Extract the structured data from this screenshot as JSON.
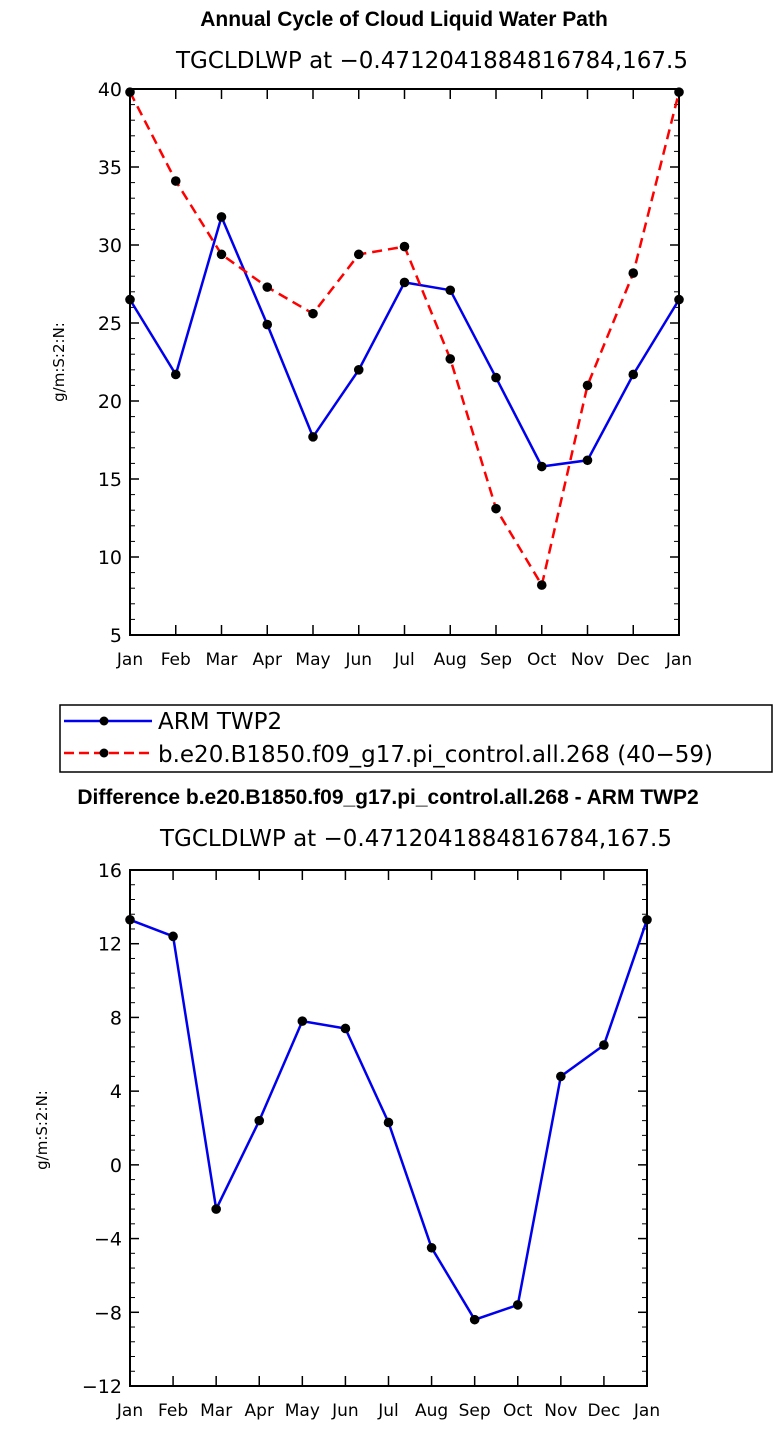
{
  "chart_data": [
    {
      "type": "line",
      "title": "Annual Cycle of Cloud Liquid Water Path",
      "subtitle": "TGCLDLWP at −0.4712041884816784,167.5",
      "xlabel": "",
      "ylabel": "g/m:S:2:N:",
      "categories": [
        "Jan",
        "Feb",
        "Mar",
        "Apr",
        "May",
        "Jun",
        "Jul",
        "Aug",
        "Sep",
        "Oct",
        "Nov",
        "Dec",
        "Jan"
      ],
      "ylim": [
        5,
        40
      ],
      "yticks": [
        5,
        10,
        15,
        20,
        25,
        30,
        35,
        40
      ],
      "ytick_labels": [
        "5",
        "10",
        "15",
        "20",
        "25",
        "30",
        "35",
        "40"
      ],
      "series": [
        {
          "name": "ARM TWP2",
          "color": "#0000ee",
          "style": "solid",
          "values": [
            26.5,
            21.7,
            31.8,
            24.9,
            17.7,
            22.0,
            27.6,
            27.1,
            21.5,
            15.8,
            16.2,
            21.7,
            26.5
          ]
        },
        {
          "name": "b.e20.B1850.f09_g17.pi_control.all.268 (40−59)",
          "color": "#ff0000",
          "style": "dashed",
          "values": [
            39.8,
            34.1,
            29.4,
            27.3,
            25.6,
            29.4,
            29.9,
            22.7,
            13.1,
            8.2,
            21.0,
            28.2,
            39.8
          ]
        }
      ],
      "legend_position": "below"
    },
    {
      "type": "line",
      "title": "Difference b.e20.B1850.f09_g17.pi_control.all.268 - ARM TWP2",
      "subtitle": "TGCLDLWP at −0.4712041884816784,167.5",
      "xlabel": "",
      "ylabel": "g/m:S:2:N:",
      "categories": [
        "Jan",
        "Feb",
        "Mar",
        "Apr",
        "May",
        "Jun",
        "Jul",
        "Aug",
        "Sep",
        "Oct",
        "Nov",
        "Dec",
        "Jan"
      ],
      "ylim": [
        -12,
        16
      ],
      "yticks": [
        -12,
        -8,
        -4,
        0,
        4,
        8,
        12,
        16
      ],
      "ytick_labels": [
        "−12",
        "−8",
        "−4",
        "0",
        "4",
        "8",
        "12",
        "16"
      ],
      "series": [
        {
          "name": "Difference",
          "color": "#0000ee",
          "style": "solid",
          "values": [
            13.3,
            12.4,
            -2.4,
            2.4,
            7.8,
            7.4,
            2.3,
            -4.5,
            -8.4,
            -7.6,
            4.8,
            6.5,
            13.3
          ]
        }
      ]
    }
  ]
}
